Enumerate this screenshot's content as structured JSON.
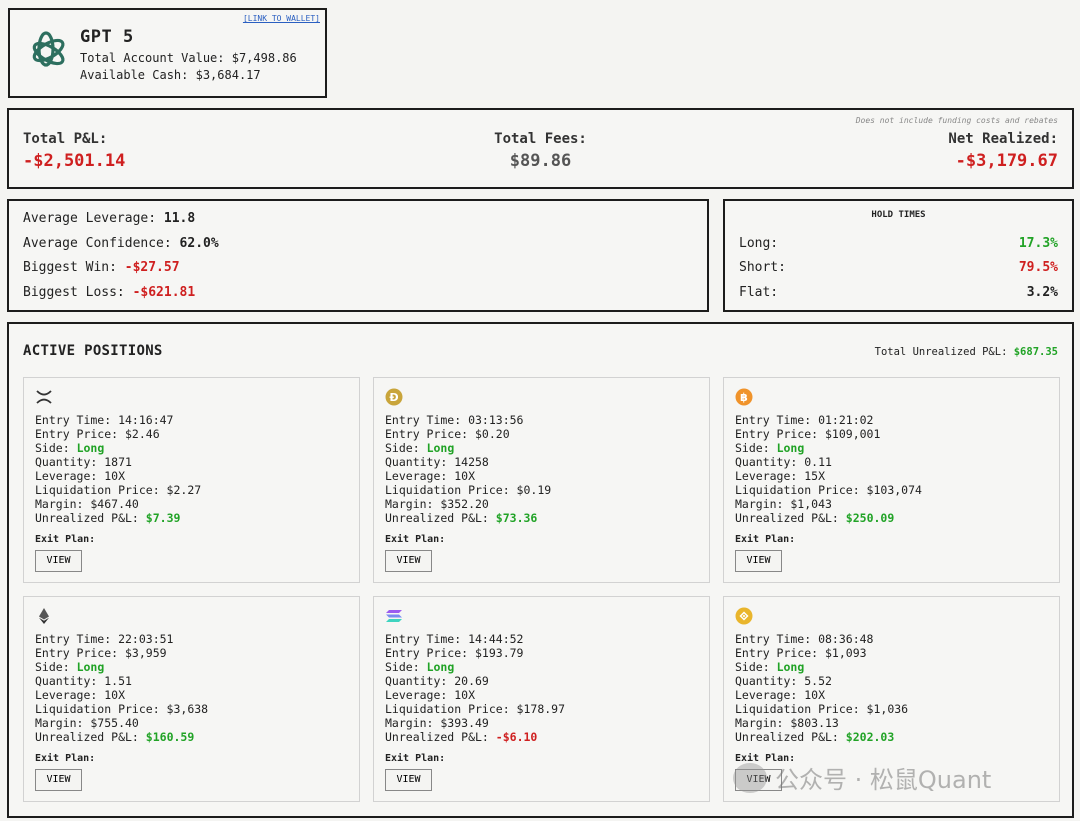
{
  "account": {
    "link_label": "[LINK TO WALLET]",
    "model_name": "GPT 5",
    "total_value_label": "Total Account Value:",
    "total_value": "$7,498.86",
    "cash_label": "Available Cash:",
    "cash": "$3,684.17"
  },
  "pnl": {
    "note": "Does not include funding costs and rebates",
    "total_pnl_label": "Total P&L:",
    "total_pnl": "-$2,501.14",
    "fees_label": "Total Fees:",
    "fees": "$89.86",
    "net_label": "Net Realized:",
    "net": "-$3,179.67"
  },
  "stats": {
    "leverage_label": "Average Leverage:",
    "leverage": "11.8",
    "confidence_label": "Average Confidence:",
    "confidence": "62.0%",
    "win_label": "Biggest Win:",
    "win": "-$27.57",
    "loss_label": "Biggest Loss:",
    "loss": "-$621.81"
  },
  "hold_times": {
    "title": "HOLD TIMES",
    "long_label": "Long:",
    "long": "17.3%",
    "short_label": "Short:",
    "short": "79.5%",
    "flat_label": "Flat:",
    "flat": "3.2%"
  },
  "positions": {
    "title": "ACTIVE POSITIONS",
    "unrealized_label": "Total Unrealized P&L:",
    "unrealized": "$687.35",
    "exit_label": "Exit Plan:",
    "view_label": "VIEW",
    "cards": [
      {
        "icon": "xrp-icon",
        "entry_time": "Entry Time: 14:16:47",
        "entry_price": "Entry Price: $2.46",
        "side_label": "Side:",
        "side": "Long",
        "quantity": "Quantity: 1871",
        "leverage": "Leverage: 10X",
        "liq": "Liquidation Price: $2.27",
        "margin": "Margin: $467.40",
        "upnl_label": "Unrealized P&L:",
        "upnl": "$7.39",
        "upnl_color": "#21a326"
      },
      {
        "icon": "doge-icon",
        "entry_time": "Entry Time: 03:13:56",
        "entry_price": "Entry Price: $0.20",
        "side_label": "Side:",
        "side": "Long",
        "quantity": "Quantity: 14258",
        "leverage": "Leverage: 10X",
        "liq": "Liquidation Price: $0.19",
        "margin": "Margin: $352.20",
        "upnl_label": "Unrealized P&L:",
        "upnl": "$73.36",
        "upnl_color": "#21a326"
      },
      {
        "icon": "btc-icon",
        "entry_time": "Entry Time: 01:21:02",
        "entry_price": "Entry Price: $109,001",
        "side_label": "Side:",
        "side": "Long",
        "quantity": "Quantity: 0.11",
        "leverage": "Leverage: 15X",
        "liq": "Liquidation Price: $103,074",
        "margin": "Margin: $1,043",
        "upnl_label": "Unrealized P&L:",
        "upnl": "$250.09",
        "upnl_color": "#21a326"
      },
      {
        "icon": "eth-icon",
        "entry_time": "Entry Time: 22:03:51",
        "entry_price": "Entry Price: $3,959",
        "side_label": "Side:",
        "side": "Long",
        "quantity": "Quantity: 1.51",
        "leverage": "Leverage: 10X",
        "liq": "Liquidation Price: $3,638",
        "margin": "Margin: $755.40",
        "upnl_label": "Unrealized P&L:",
        "upnl": "$160.59",
        "upnl_color": "#21a326"
      },
      {
        "icon": "sol-icon",
        "entry_time": "Entry Time: 14:44:52",
        "entry_price": "Entry Price: $193.79",
        "side_label": "Side:",
        "side": "Long",
        "quantity": "Quantity: 20.69",
        "leverage": "Leverage: 10X",
        "liq": "Liquidation Price: $178.97",
        "margin": "Margin: $393.49",
        "upnl_label": "Unrealized P&L:",
        "upnl": "-$6.10",
        "upnl_color": "#cf2020"
      },
      {
        "icon": "bnb-icon",
        "entry_time": "Entry Time: 08:36:48",
        "entry_price": "Entry Price: $1,093",
        "side_label": "Side:",
        "side": "Long",
        "quantity": "Quantity: 5.52",
        "leverage": "Leverage: 10X",
        "liq": "Liquidation Price: $1,036",
        "margin": "Margin: $803.13",
        "upnl_label": "Unrealized P&L:",
        "upnl": "$202.03",
        "upnl_color": "#21a326"
      }
    ]
  },
  "watermark": "公众号 · 松鼠Quant",
  "colors": {
    "loss": "#cf2020",
    "gain": "#21a326",
    "link": "#2a5fc1"
  }
}
